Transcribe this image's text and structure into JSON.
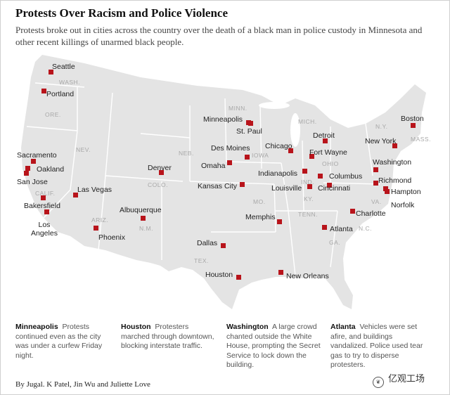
{
  "title": "Protests Over Racism and Police Violence",
  "subtitle": "Protests broke out in cities across the country over the death of a black man in police custody in Minnesota and other recent killings of unarmed black people.",
  "map": {
    "land_color": "#e4e4e4",
    "border_color": "#ffffff",
    "marker_color": "#b8141b",
    "state_labels": [
      "WASH.",
      "ORE.",
      "NEV.",
      "CALIF.",
      "ARIZ.",
      "COLO.",
      "N.M.",
      "NEB.",
      "MINN.",
      "IOWA",
      "MO.",
      "TEX.",
      "TENN.",
      "GA.",
      "KY.",
      "IND.",
      "OHIO",
      "MICH.",
      "N.Y.",
      "MASS.",
      "N.C.",
      "VA."
    ],
    "cities": [
      "Seattle",
      "Portland",
      "Sacramento",
      "Oakland",
      "San Jose",
      "Bakersfield",
      "Los Angeles",
      "Las Vegas",
      "Phoenix",
      "Albuquerque",
      "Denver",
      "Omaha",
      "Des Moines",
      "Kansas City",
      "Minneapolis",
      "St. Paul",
      "Chicago",
      "Indianapolis",
      "Louisville",
      "Fort Wayne",
      "Detroit",
      "Columbus",
      "Cincinnati",
      "Memphis",
      "Dallas",
      "Houston",
      "New Orleans",
      "Atlanta",
      "Charlotte",
      "Richmond",
      "Hampton",
      "Norfolk",
      "Washington",
      "New York",
      "Boston"
    ]
  },
  "notes": [
    {
      "city": "Minneapolis",
      "text": "Protests continued even as the city was under a curfew Friday night."
    },
    {
      "city": "Houston",
      "text": "Protesters marched through downtown, blocking interstate traffic."
    },
    {
      "city": "Washington",
      "text": "A large crowd chanted outside the White House, prompting the Secret Service to lock down the building."
    },
    {
      "city": "Atlanta",
      "text": "Vehicles were set afire, and buildings vandalized. Police used tear gas to try to disperse protesters."
    }
  ],
  "byline": "By Jugal. K Patel, Jin Wu and Juliette Love",
  "watermark": "亿观工场"
}
